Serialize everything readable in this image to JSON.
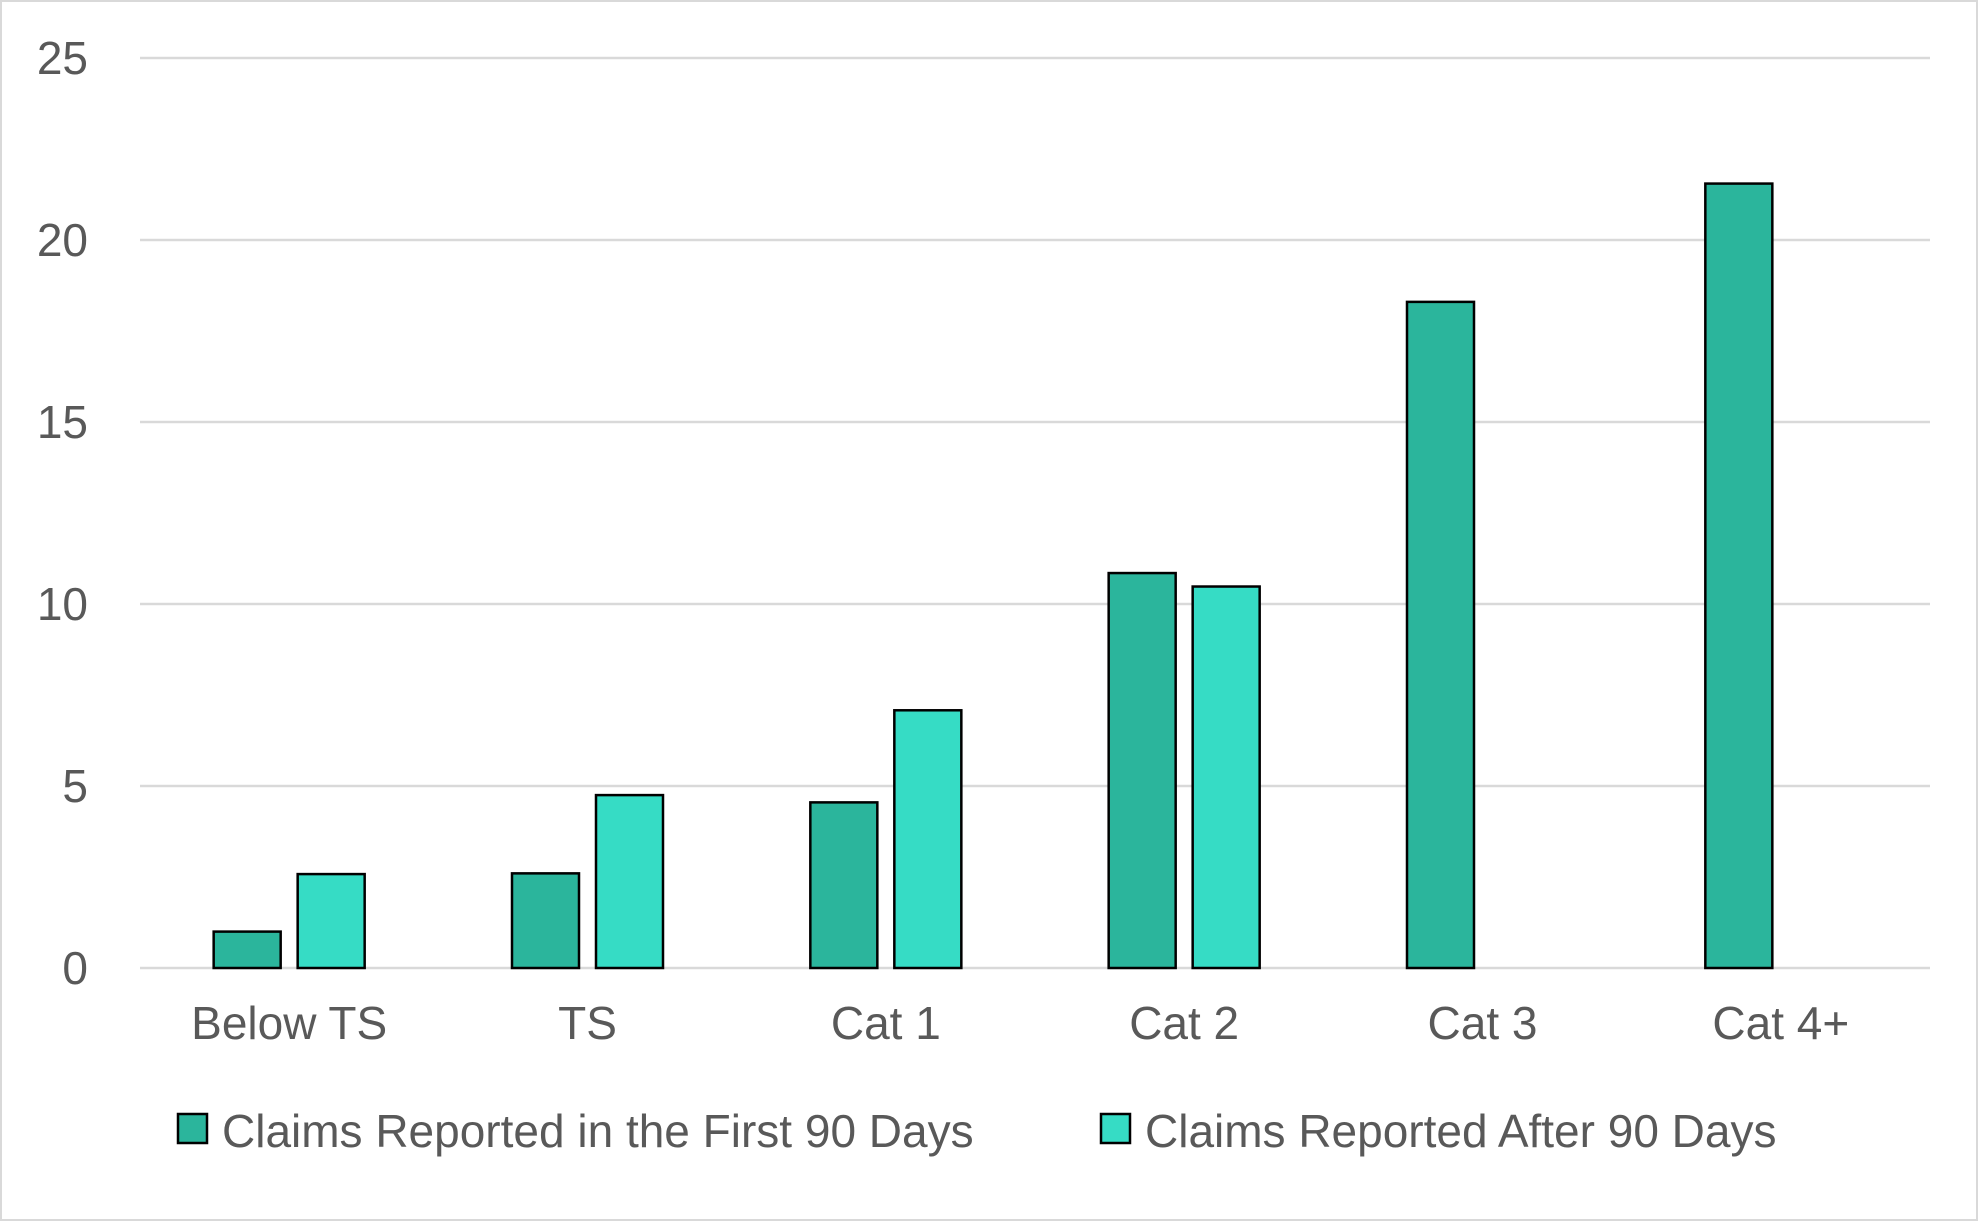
{
  "chart_data": {
    "type": "bar",
    "title": "",
    "xlabel": "",
    "ylabel": "",
    "categories": [
      "Below TS",
      "TS",
      "Cat 1",
      "Cat 2",
      "Cat 3",
      "Cat 4+"
    ],
    "series": [
      {
        "name": "Claims Reported in the First 90 Days",
        "color": "#2bb59c",
        "values": [
          1.0,
          2.6,
          4.55,
          10.85,
          18.3,
          21.55
        ]
      },
      {
        "name": "Claims Reported After 90 Days",
        "color": "#36dcc5",
        "values": [
          2.58,
          4.75,
          7.08,
          10.48,
          null,
          null
        ]
      }
    ],
    "ylim": [
      0,
      25
    ],
    "yticks": [
      "0",
      "5",
      "10",
      "15",
      "20",
      "25"
    ],
    "grid": true,
    "legend_position": "bottom",
    "colors": {
      "grid": "#d9d9d9",
      "axis_text": "#595959",
      "bar_outline": "#000000"
    }
  }
}
